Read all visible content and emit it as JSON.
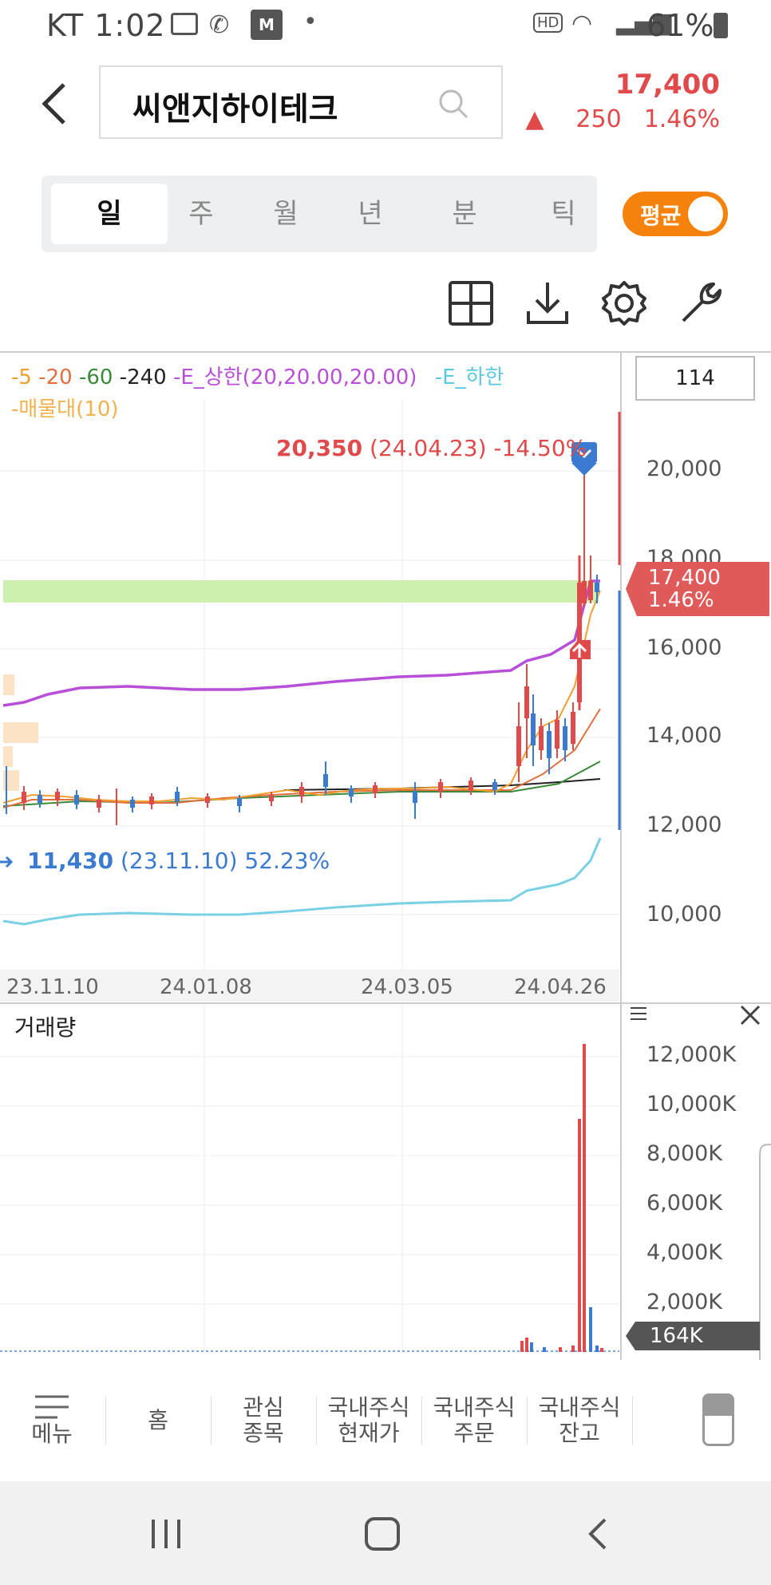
{
  "status_bar": {
    "carrier_time": "KT 1:02",
    "hd": "HD",
    "battery": "61%"
  },
  "header": {
    "stock_name": "씨앤지하이테크",
    "price": "17,400",
    "change": "250",
    "change_pct": "1.46%"
  },
  "tabs": [
    {
      "label": "일",
      "active": true
    },
    {
      "label": "주"
    },
    {
      "label": "월"
    },
    {
      "label": "년"
    },
    {
      "label": "분"
    },
    {
      "label": "틱"
    }
  ],
  "toggle": {
    "label": "평균"
  },
  "toolbar": [
    "grid-layout-icon",
    "download-icon",
    "settings-icon",
    "wrench-icon"
  ],
  "chart": {
    "legend": [
      {
        "text": "5",
        "color": "#f0a030"
      },
      {
        "text": "20",
        "color": "#e07040"
      },
      {
        "text": "60",
        "color": "#3a8a3a"
      },
      {
        "text": "240",
        "color": "#222222"
      },
      {
        "text": "E_상한(20,20.00,20.00)",
        "color": "#b84fd8"
      },
      {
        "text": "E_하한",
        "color": "#5bc8e0"
      }
    ],
    "legend_line2": "매물대(10)",
    "candle_count": "114",
    "high_annotation": {
      "value": "20,350",
      "detail": "(24.04.23) -14.50%"
    },
    "low_annotation": {
      "value": "11,430",
      "detail": "(23.11.10) 52.23%"
    },
    "current_tag": {
      "price": "17,400",
      "pct": "1.46%"
    },
    "y_ticks": [
      "20,000",
      "18,000",
      "16,000",
      "14,000",
      "12,000",
      "10,000"
    ],
    "x_ticks": [
      "23.11.10",
      "24.01.08",
      "24.03.05",
      "24.04.26"
    ],
    "colors": {
      "up": "#e04a4a",
      "down": "#3b7bcf",
      "upper_band": "#b84fd8",
      "lower_band": "#5bc8e0",
      "volume_profile": "#c8f0a8"
    }
  },
  "volume": {
    "title": "거래량",
    "y_ticks": [
      "12,000K",
      "10,000K",
      "8,000K",
      "6,000K",
      "4,000K",
      "2,000K"
    ],
    "current_tag": "164K"
  },
  "chart_data": {
    "type": "candlestick",
    "x_range": [
      "23.11.10",
      "24.04.26"
    ],
    "ylim": [
      9000,
      21000
    ],
    "high": {
      "value": 20350,
      "date": "24.04.23"
    },
    "low": {
      "value": 11430,
      "date": "23.11.10"
    },
    "last_close": 17400,
    "upper_band_approx": {
      "x": [
        "23.11.10",
        "24.01.08",
        "24.03.05",
        "24.04.10",
        "24.04.26"
      ],
      "y": [
        14900,
        15100,
        15500,
        15600,
        17300
      ]
    },
    "lower_band_approx": {
      "x": [
        "23.11.10",
        "24.01.08",
        "24.03.05",
        "24.04.10",
        "24.04.26"
      ],
      "y": [
        9950,
        10050,
        10400,
        10500,
        11700
      ]
    },
    "volume_ylim_k": [
      0,
      12500
    ],
    "volume_peaks_k": [
      {
        "date": "24.04.22",
        "value": 9500
      },
      {
        "date": "24.04.23",
        "value": 12400
      },
      {
        "date": "24.04.25",
        "value": 1900
      }
    ],
    "last_volume_k": 164
  },
  "bottom_nav": [
    {
      "label": "메뉴"
    },
    {
      "label": "홈"
    },
    {
      "label": "관심\n종목"
    },
    {
      "label": "국내주식\n현재가"
    },
    {
      "label": "국내주식\n주문"
    },
    {
      "label": "국내주식\n잔고"
    }
  ]
}
